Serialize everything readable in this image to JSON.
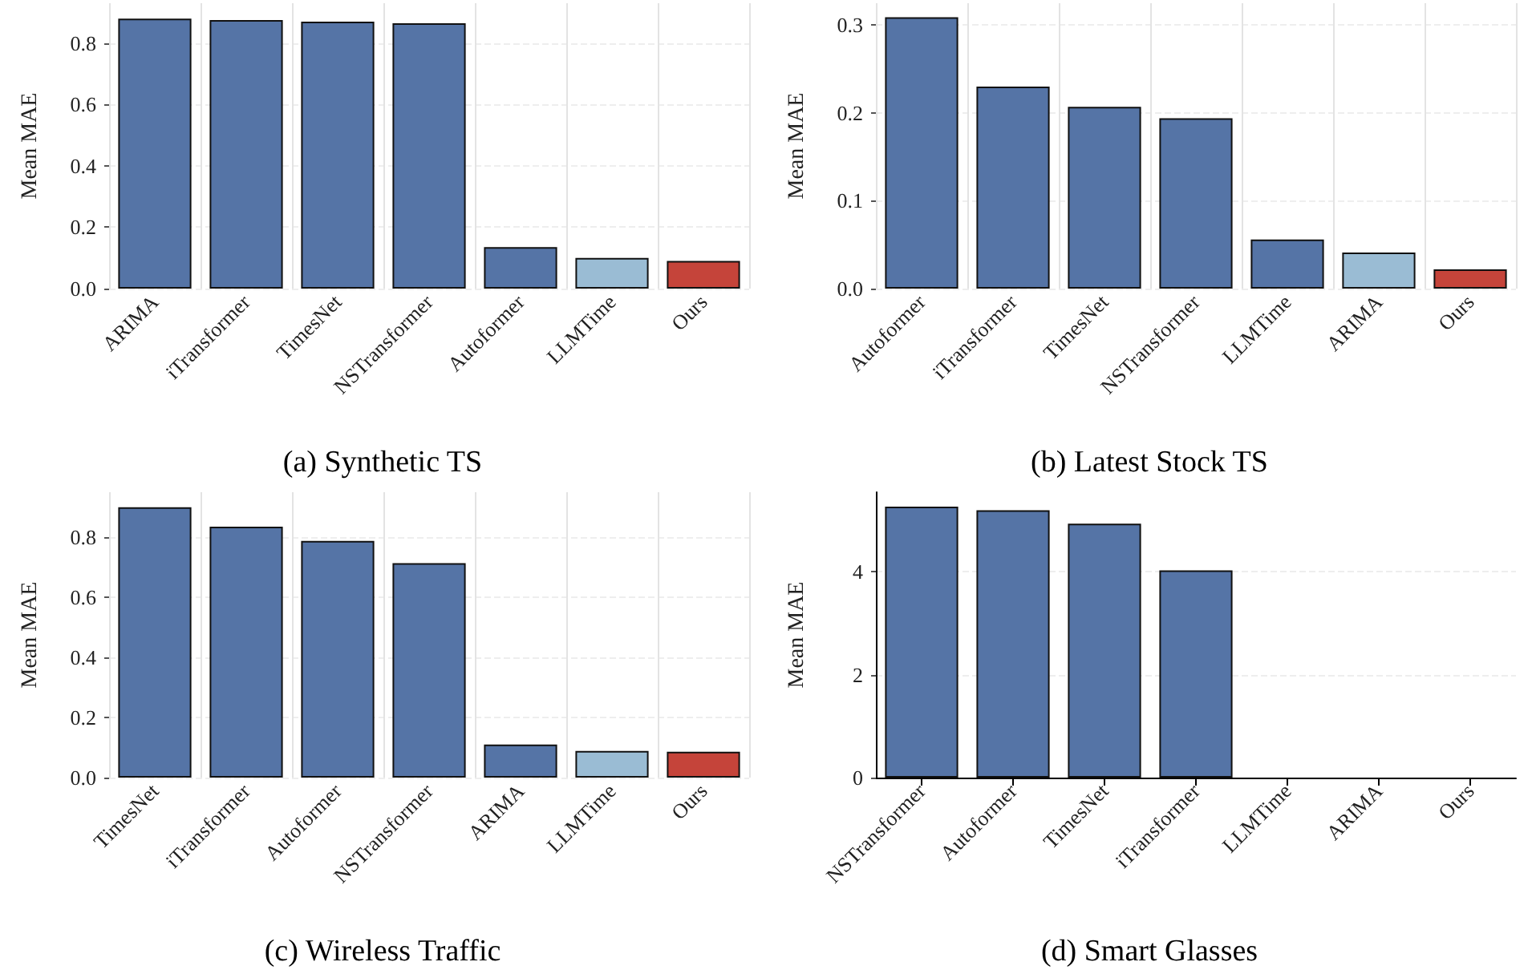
{
  "chart_data": [
    {
      "type": "bar",
      "title": "(a) Synthetic TS",
      "ylabel": "Mean MAE",
      "categories": [
        "ARIMA",
        "iTransformer",
        "TimesNet",
        "NSTransformer",
        "Autoformer",
        "LLMTime",
        "Ours"
      ],
      "values": [
        0.88,
        0.875,
        0.87,
        0.865,
        0.135,
        0.1,
        0.09
      ],
      "colors": [
        "#5574a6",
        "#5574a6",
        "#5574a6",
        "#5574a6",
        "#5574a6",
        "#9abcd4",
        "#c5443a"
      ],
      "ylim": [
        0,
        0.93
      ],
      "yticks": [
        {
          "value": 0,
          "label": "0.0"
        },
        {
          "value": 0.2,
          "label": "0.2"
        },
        {
          "value": 0.4,
          "label": "0.4"
        },
        {
          "value": 0.6,
          "label": "0.6"
        },
        {
          "value": 0.8,
          "label": "0.8"
        }
      ],
      "grid": true
    },
    {
      "type": "bar",
      "title": "(b) Latest Stock TS",
      "ylabel": "Mean MAE",
      "categories": [
        "Autoformer",
        "iTransformer",
        "TimesNet",
        "NSTransformer",
        "LLMTime",
        "ARIMA",
        "Ours"
      ],
      "values": [
        0.309,
        0.23,
        0.207,
        0.194,
        0.056,
        0.041,
        0.022
      ],
      "colors": [
        "#5574a6",
        "#5574a6",
        "#5574a6",
        "#5574a6",
        "#5574a6",
        "#9abcd4",
        "#c5443a"
      ],
      "ylim": [
        0,
        0.325
      ],
      "yticks": [
        {
          "value": 0,
          "label": "0.0"
        },
        {
          "value": 0.1,
          "label": "0.1"
        },
        {
          "value": 0.2,
          "label": "0.2"
        },
        {
          "value": 0.3,
          "label": "0.3"
        }
      ],
      "grid": true
    },
    {
      "type": "bar",
      "title": "(c) Wireless Traffic",
      "ylabel": "Mean MAE",
      "categories": [
        "TimesNet",
        "iTransformer",
        "Autoformer",
        "NSTransformer",
        "ARIMA",
        "LLMTime",
        "Ours"
      ],
      "values": [
        0.9,
        0.835,
        0.788,
        0.714,
        0.11,
        0.089,
        0.086
      ],
      "colors": [
        "#5574a6",
        "#5574a6",
        "#5574a6",
        "#5574a6",
        "#5574a6",
        "#9abcd4",
        "#c5443a"
      ],
      "ylim": [
        0,
        0.95
      ],
      "yticks": [
        {
          "value": 0,
          "label": "0.0"
        },
        {
          "value": 0.2,
          "label": "0.2"
        },
        {
          "value": 0.4,
          "label": "0.4"
        },
        {
          "value": 0.6,
          "label": "0.6"
        },
        {
          "value": 0.8,
          "label": "0.8"
        }
      ],
      "grid": true
    },
    {
      "type": "bar",
      "title": "(d) Smart Glasses",
      "ylabel": "Mean MAE",
      "categories": [
        "NSTransformer",
        "Autoformer",
        "TimesNet",
        "iTransformer",
        "LLMTime",
        "ARIMA",
        "Ours"
      ],
      "values": [
        5.27,
        5.2,
        4.94,
        4.03,
        null,
        null,
        null
      ],
      "colors": [
        "#5574a6",
        "#5574a6",
        "#5574a6",
        "#5574a6",
        "#111111",
        "#111111",
        "#111111"
      ],
      "ylim": [
        0,
        5.55
      ],
      "yticks": [
        0,
        2,
        4
      ],
      "grid": "y"
    }
  ]
}
